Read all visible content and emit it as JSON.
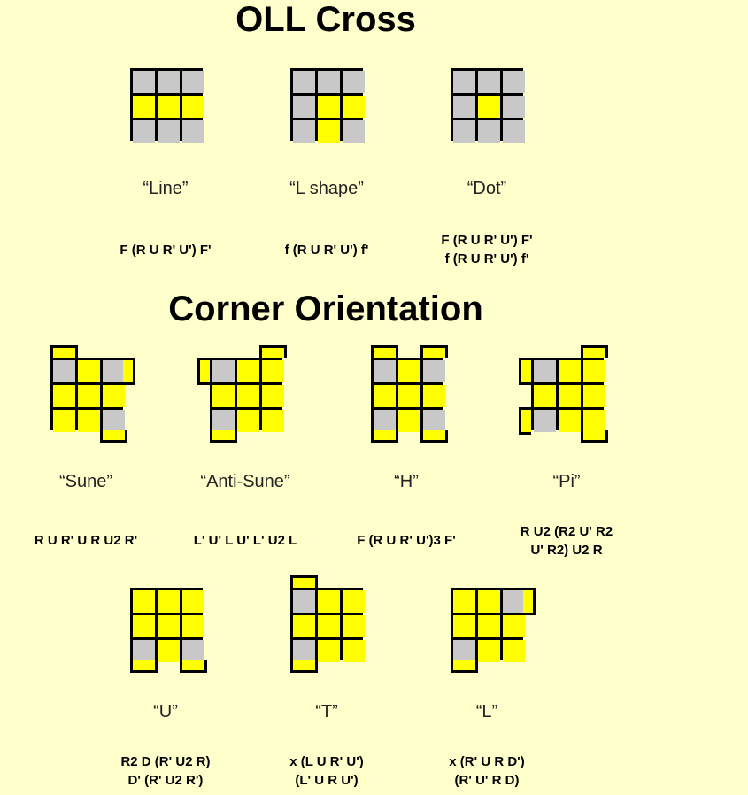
{
  "colors": {
    "yellow": "#ffff00",
    "gray": "#c8c8c8",
    "border": "#000000",
    "background": "#ffffcc"
  },
  "sections": {
    "oll_cross": {
      "title": "OLL Cross",
      "cases": [
        {
          "name": "“Line”",
          "alg": [
            "F (R U R' U') F'"
          ]
        },
        {
          "name": "“L shape”",
          "alg": [
            "f (R U R' U') f'"
          ]
        },
        {
          "name": "“Dot”",
          "alg": [
            "F (R U R' U') F'",
            "f (R U R' U') f'"
          ]
        }
      ]
    },
    "corner_orientation": {
      "title": "Corner Orientation",
      "cases": [
        {
          "name": "“Sune”",
          "alg": [
            "R U R' U R U2 R'"
          ]
        },
        {
          "name": "“Anti-Sune”",
          "alg": [
            "L' U' L U' L' U2 L"
          ]
        },
        {
          "name": "“H”",
          "alg": [
            "F (R U R' U')3 F'"
          ]
        },
        {
          "name": "“Pi”",
          "alg": [
            "R U2 (R2 U' R2",
            "U' R2) U2 R"
          ]
        },
        {
          "name": "“U”",
          "alg": [
            "R2 D (R' U2 R)",
            "D' (R' U2 R')"
          ]
        },
        {
          "name": "“T”",
          "alg": [
            "x (L U R' U')",
            "(L' U R U')"
          ]
        },
        {
          "name": "“L”",
          "alg": [
            "x (R' U R D')",
            "(R' U' R D)"
          ]
        }
      ]
    }
  },
  "patterns": [
    {
      "grid": [
        "ggg",
        "yyy",
        "ggg"
      ],
      "top": "",
      "bottom": "",
      "left": "",
      "right": ""
    },
    {
      "grid": [
        "ggg",
        "gyy",
        "gyg"
      ],
      "top": "",
      "bottom": "",
      "left": "",
      "right": ""
    },
    {
      "grid": [
        "ggg",
        "gyg",
        "ggg"
      ],
      "top": "",
      "bottom": "",
      "left": "",
      "right": ""
    },
    {
      "grid": [
        "gyg",
        "yyy",
        "yyg"
      ],
      "top": "y--",
      "bottom": "--y",
      "left": "",
      "right": "y--"
    },
    {
      "grid": [
        "gyy",
        "yyy",
        "gyy"
      ],
      "top": "--y",
      "bottom": "y--",
      "left": "y--",
      "right": ""
    },
    {
      "grid": [
        "gyg",
        "yyy",
        "gyg"
      ],
      "top": "y-y",
      "bottom": "y-y",
      "left": "",
      "right": ""
    },
    {
      "grid": [
        "gyy",
        "yyy",
        "gyy"
      ],
      "top": "--y",
      "bottom": "--y",
      "left": "y-y",
      "right": ""
    },
    {
      "grid": [
        "yyy",
        "yyy",
        "gyg"
      ],
      "top": "",
      "bottom": "y-y",
      "left": "",
      "right": ""
    },
    {
      "grid": [
        "gyy",
        "yyy",
        "gyy"
      ],
      "top": "y--",
      "bottom": "y--",
      "left": "",
      "right": ""
    },
    {
      "grid": [
        "yyg",
        "yyy",
        "gyy"
      ],
      "top": "",
      "bottom": "y--",
      "left": "",
      "right": "y--"
    }
  ]
}
